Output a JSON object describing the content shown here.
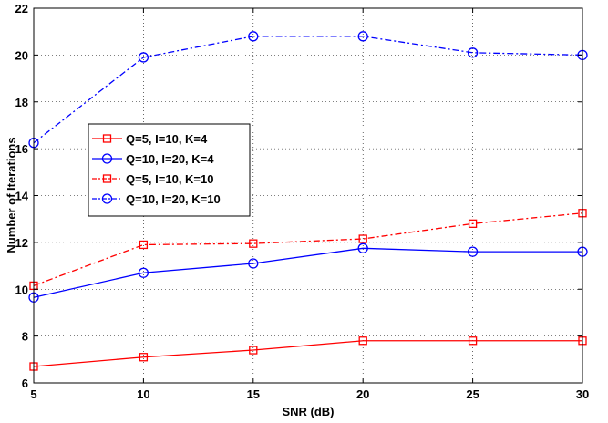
{
  "chart_data": {
    "type": "line",
    "title": "",
    "xlabel": "SNR (dB)",
    "ylabel": "Number of Iterations",
    "xlim": [
      5,
      30
    ],
    "ylim": [
      6,
      22
    ],
    "xticks": [
      "5",
      "10",
      "15",
      "20",
      "25",
      "30"
    ],
    "yticks": [
      "6",
      "8",
      "10",
      "12",
      "14",
      "16",
      "18",
      "20",
      "22"
    ],
    "grid": true,
    "legend_position": "center-left",
    "x": [
      5,
      10,
      15,
      20,
      25,
      30
    ],
    "series": [
      {
        "name": "Q=5, I=10, K=4",
        "values": [
          6.7,
          7.1,
          7.4,
          7.8,
          7.8,
          7.8
        ],
        "color": "#ff0000",
        "marker": "square",
        "dash": "solid"
      },
      {
        "name": "Q=10, I=20, K=4",
        "values": [
          9.65,
          10.7,
          11.1,
          11.75,
          11.6,
          11.6
        ],
        "color": "#0000ff",
        "marker": "circle",
        "dash": "solid"
      },
      {
        "name": "Q=5, I=10, K=10",
        "values": [
          10.15,
          11.9,
          11.95,
          12.15,
          12.8,
          13.25
        ],
        "color": "#ff0000",
        "marker": "square",
        "dash": "dashdot"
      },
      {
        "name": "Q=10, I=20, K=10",
        "values": [
          16.25,
          19.9,
          20.8,
          20.8,
          20.1,
          20.0
        ],
        "color": "#0000ff",
        "marker": "circle",
        "dash": "dashdot"
      }
    ]
  }
}
